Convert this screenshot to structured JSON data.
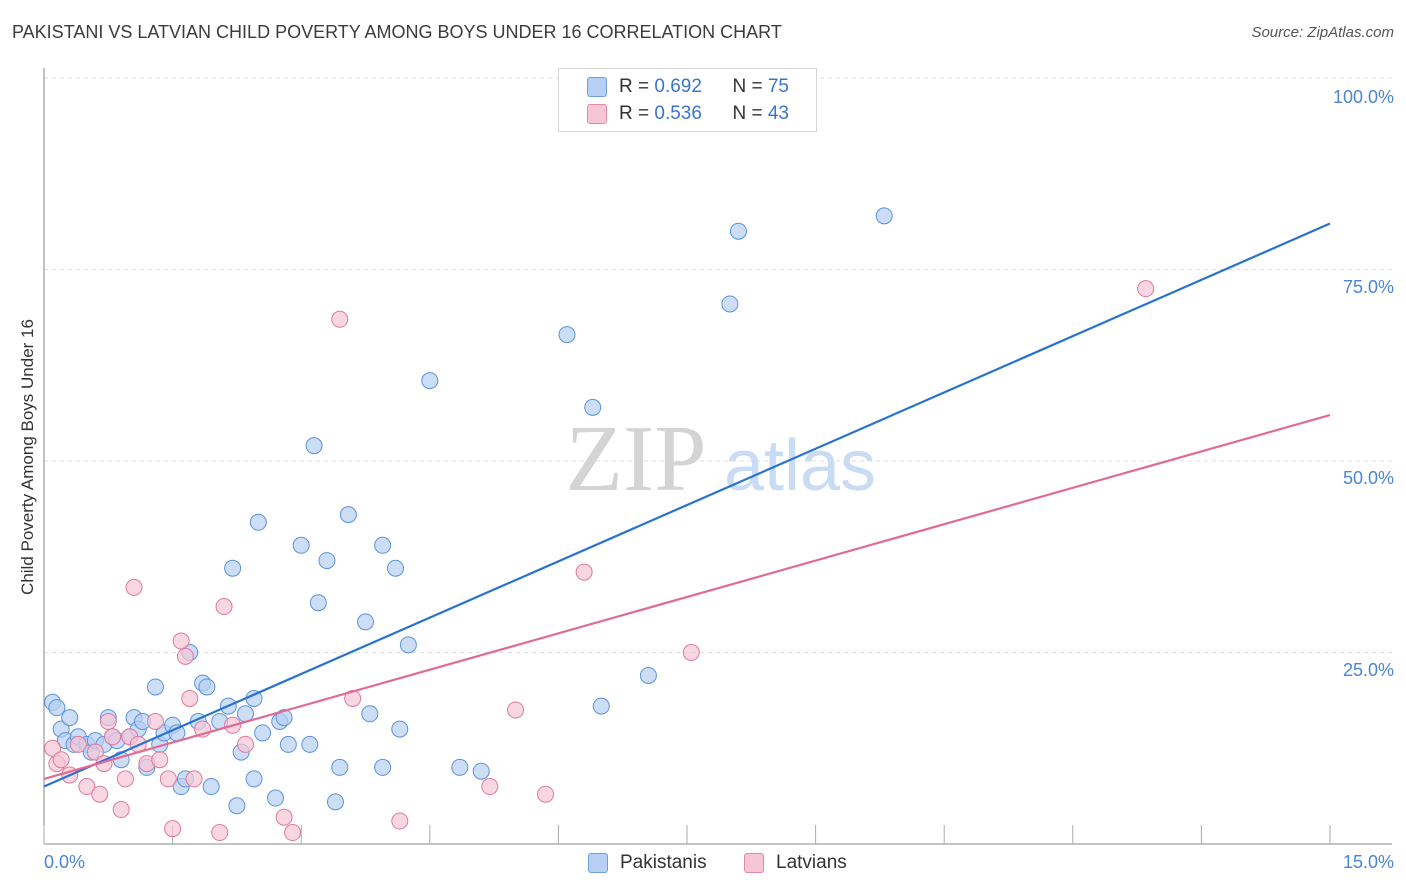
{
  "title": "PAKISTANI VS LATVIAN CHILD POVERTY AMONG BOYS UNDER 16 CORRELATION CHART",
  "source": "Source: ZipAtlas.com",
  "watermark": {
    "zip": "ZIP",
    "atlas": "atlas"
  },
  "legend": {
    "rows": [
      {
        "r_label": "R = ",
        "r_value": "0.692",
        "n_label": "N = ",
        "n_value": "75",
        "color": "#a9c7ef"
      },
      {
        "r_label": "R = ",
        "r_value": "0.536",
        "n_label": "N = ",
        "n_value": "43",
        "color": "#f5b8cb"
      }
    ]
  },
  "bottom_legend": {
    "pakistanis": "Pakistanis",
    "latvians": "Latvians"
  },
  "chart_data": {
    "type": "scatter",
    "title": "PAKISTANI VS LATVIAN CHILD POVERTY AMONG BOYS UNDER 16 CORRELATION CHART",
    "xlabel": "",
    "ylabel": "Child Poverty Among Boys Under 16",
    "xlim": [
      0,
      15
    ],
    "ylim": [
      0,
      100
    ],
    "x_tick_labels": [
      "0.0%",
      "15.0%"
    ],
    "y_tick_labels": [
      {
        "value": 25,
        "label": "25.0%"
      },
      {
        "value": 50,
        "label": "50.0%"
      },
      {
        "value": 75,
        "label": "75.0%"
      },
      {
        "value": 100,
        "label": "100.0%"
      }
    ],
    "grid": true,
    "series": [
      {
        "name": "Pakistanis",
        "color": "#5b93dc",
        "fill": "#b6cff2",
        "r": 0.692,
        "n": 75,
        "trend": {
          "x": [
            0,
            15
          ],
          "y": [
            7.5,
            81
          ]
        },
        "points": [
          [
            0.1,
            18.5
          ],
          [
            0.15,
            17.8
          ],
          [
            0.2,
            15
          ],
          [
            0.25,
            13.5
          ],
          [
            0.3,
            16.5
          ],
          [
            0.35,
            13
          ],
          [
            0.4,
            14
          ],
          [
            0.5,
            13
          ],
          [
            0.55,
            12
          ],
          [
            0.6,
            13.5
          ],
          [
            0.7,
            13
          ],
          [
            0.75,
            16.5
          ],
          [
            0.8,
            14
          ],
          [
            0.85,
            13.5
          ],
          [
            0.9,
            11
          ],
          [
            1.0,
            14
          ],
          [
            1.05,
            16.5
          ],
          [
            1.1,
            15
          ],
          [
            1.15,
            16
          ],
          [
            1.2,
            10
          ],
          [
            1.3,
            20.5
          ],
          [
            1.35,
            13
          ],
          [
            1.4,
            14.5
          ],
          [
            1.5,
            15.5
          ],
          [
            1.55,
            14.5
          ],
          [
            1.6,
            7.5
          ],
          [
            1.65,
            8.5
          ],
          [
            1.7,
            25
          ],
          [
            1.8,
            16
          ],
          [
            1.85,
            21
          ],
          [
            1.9,
            20.5
          ],
          [
            1.95,
            7.5
          ],
          [
            2.05,
            16
          ],
          [
            2.15,
            18
          ],
          [
            2.2,
            36
          ],
          [
            2.25,
            5
          ],
          [
            2.3,
            12
          ],
          [
            2.35,
            17
          ],
          [
            2.45,
            19
          ],
          [
            2.45,
            8.5
          ],
          [
            2.5,
            42
          ],
          [
            2.55,
            14.5
          ],
          [
            2.7,
            6
          ],
          [
            2.75,
            16
          ],
          [
            2.8,
            16.5
          ],
          [
            2.85,
            13
          ],
          [
            3.0,
            39
          ],
          [
            3.1,
            13
          ],
          [
            3.15,
            52
          ],
          [
            3.2,
            31.5
          ],
          [
            3.3,
            37
          ],
          [
            3.4,
            5.5
          ],
          [
            3.45,
            10
          ],
          [
            3.55,
            43
          ],
          [
            3.75,
            29
          ],
          [
            3.8,
            17
          ],
          [
            3.95,
            10
          ],
          [
            3.95,
            39
          ],
          [
            4.1,
            36
          ],
          [
            4.15,
            15
          ],
          [
            4.25,
            26
          ],
          [
            4.5,
            60.5
          ],
          [
            4.85,
            10
          ],
          [
            5.1,
            9.5
          ],
          [
            6.1,
            66.5
          ],
          [
            6.4,
            57
          ],
          [
            6.5,
            18
          ],
          [
            7.05,
            22
          ],
          [
            8.0,
            70.5
          ],
          [
            8.1,
            80
          ],
          [
            9.8,
            82
          ]
        ]
      },
      {
        "name": "Latvians",
        "color": "#e0799d",
        "fill": "#f7c6d6",
        "r": 0.536,
        "n": 43,
        "trend": {
          "x": [
            0,
            15
          ],
          "y": [
            8.5,
            56
          ]
        },
        "points": [
          [
            0.1,
            12.5
          ],
          [
            0.15,
            10.5
          ],
          [
            0.2,
            11
          ],
          [
            0.3,
            9
          ],
          [
            0.4,
            13
          ],
          [
            0.5,
            7.5
          ],
          [
            0.6,
            12
          ],
          [
            0.65,
            6.5
          ],
          [
            0.7,
            10.5
          ],
          [
            0.75,
            16
          ],
          [
            0.8,
            14
          ],
          [
            0.9,
            4.5
          ],
          [
            0.95,
            8.5
          ],
          [
            1.0,
            14
          ],
          [
            1.05,
            33.5
          ],
          [
            1.1,
            13
          ],
          [
            1.2,
            10.5
          ],
          [
            1.3,
            16
          ],
          [
            1.35,
            11
          ],
          [
            1.45,
            8.5
          ],
          [
            1.5,
            2
          ],
          [
            1.6,
            26.5
          ],
          [
            1.65,
            24.5
          ],
          [
            1.7,
            19
          ],
          [
            1.75,
            8.5
          ],
          [
            1.85,
            15
          ],
          [
            2.05,
            1.5
          ],
          [
            2.1,
            31
          ],
          [
            2.2,
            15.5
          ],
          [
            2.35,
            13
          ],
          [
            2.8,
            3.5
          ],
          [
            2.9,
            1.5
          ],
          [
            3.45,
            68.5
          ],
          [
            3.6,
            19
          ],
          [
            4.15,
            3
          ],
          [
            5.2,
            7.5
          ],
          [
            5.5,
            17.5
          ],
          [
            5.85,
            6.5
          ],
          [
            6.3,
            35.5
          ],
          [
            7.55,
            25
          ],
          [
            12.85,
            72.5
          ]
        ]
      }
    ]
  }
}
